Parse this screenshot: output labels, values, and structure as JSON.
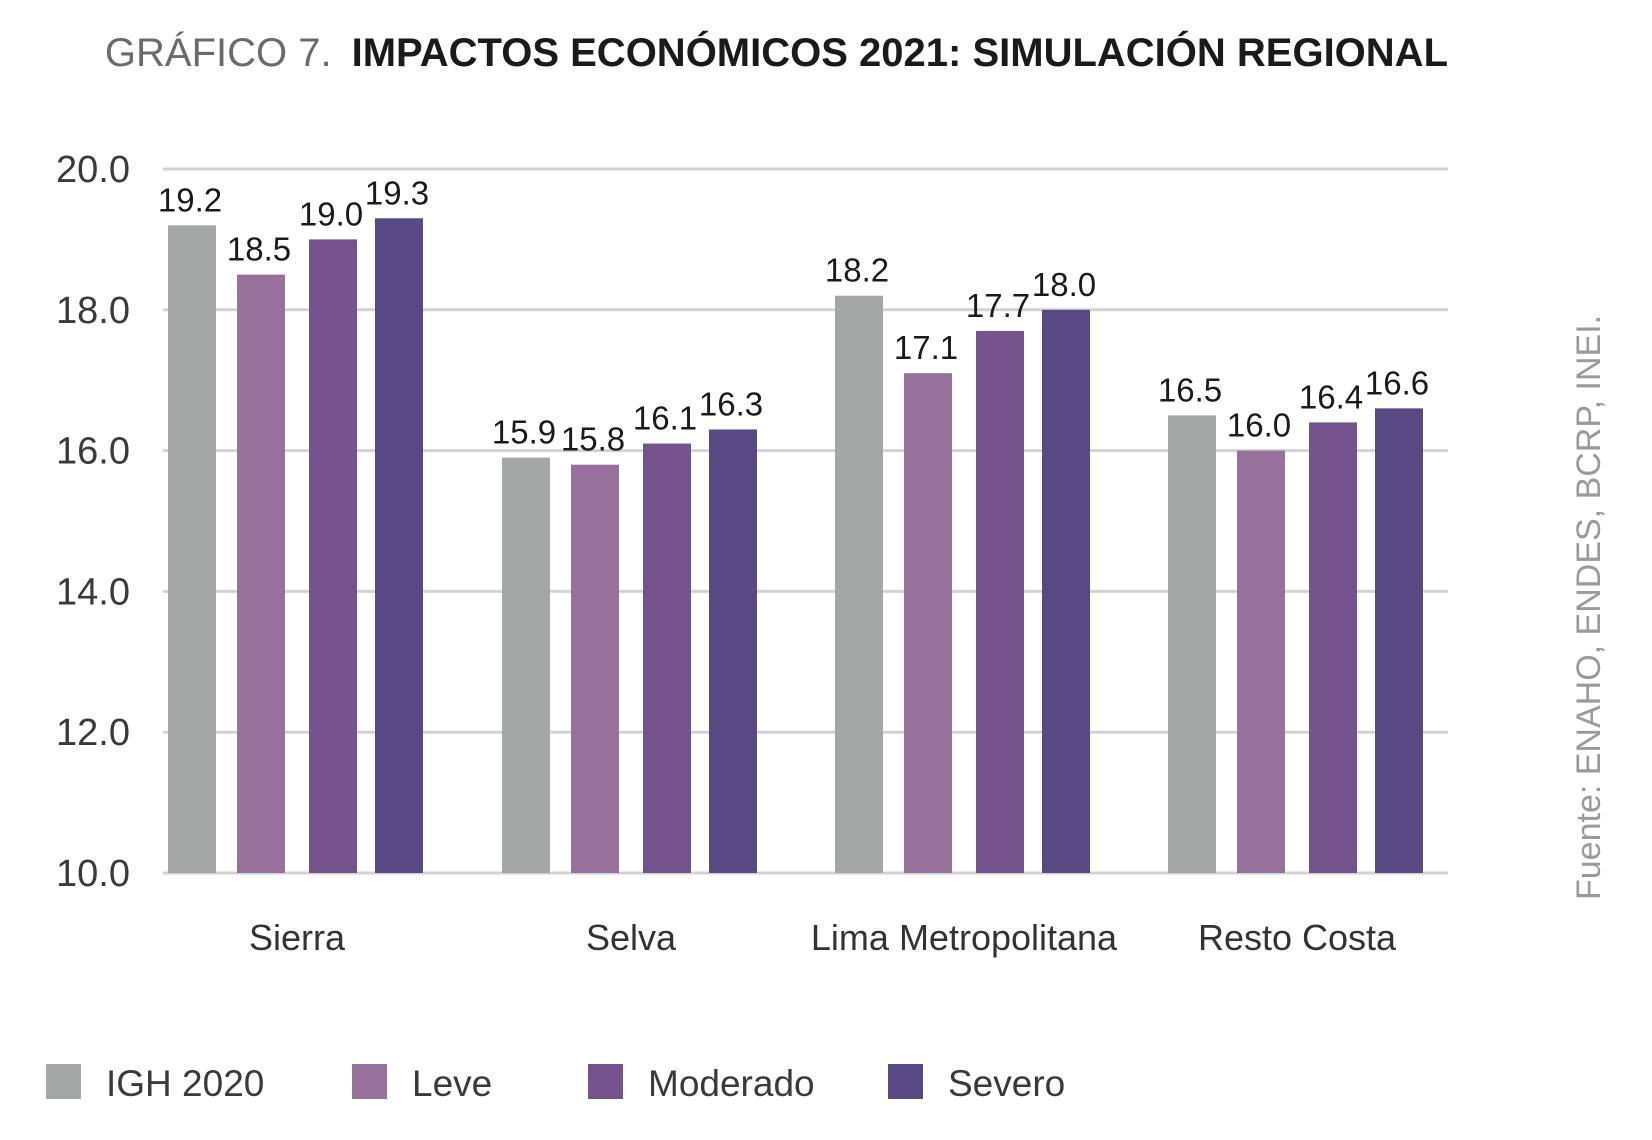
{
  "chart_data": {
    "type": "bar",
    "title_prefix": "GRÁFICO 7.",
    "title": "IMPACTOS ECONÓMICOS 2021: SIMULACIÓN REGIONAL",
    "categories": [
      "Sierra",
      "Selva",
      "Lima Metropolitana",
      "Resto Costa"
    ],
    "series": [
      {
        "name": "IGH 2020",
        "color": "#a4a7a6",
        "values": [
          19.2,
          15.9,
          18.2,
          16.5
        ]
      },
      {
        "name": "Leve",
        "color": "#97719c",
        "values": [
          18.5,
          15.8,
          17.1,
          16.0
        ]
      },
      {
        "name": "Moderado",
        "color": "#74528c",
        "values": [
          19.0,
          16.1,
          17.7,
          16.4
        ]
      },
      {
        "name": "Severo",
        "color": "#564984",
        "values": [
          19.3,
          16.3,
          18.0,
          16.6
        ]
      }
    ],
    "ylim": [
      10.0,
      20.0
    ],
    "yticks": [
      "10.0",
      "12.0",
      "14.0",
      "16.0",
      "18.0",
      "20.0"
    ],
    "grid": true,
    "legend_position": "bottom-left",
    "source": "Fuente: ENAHO, ENDES, BCRP, INEI."
  }
}
